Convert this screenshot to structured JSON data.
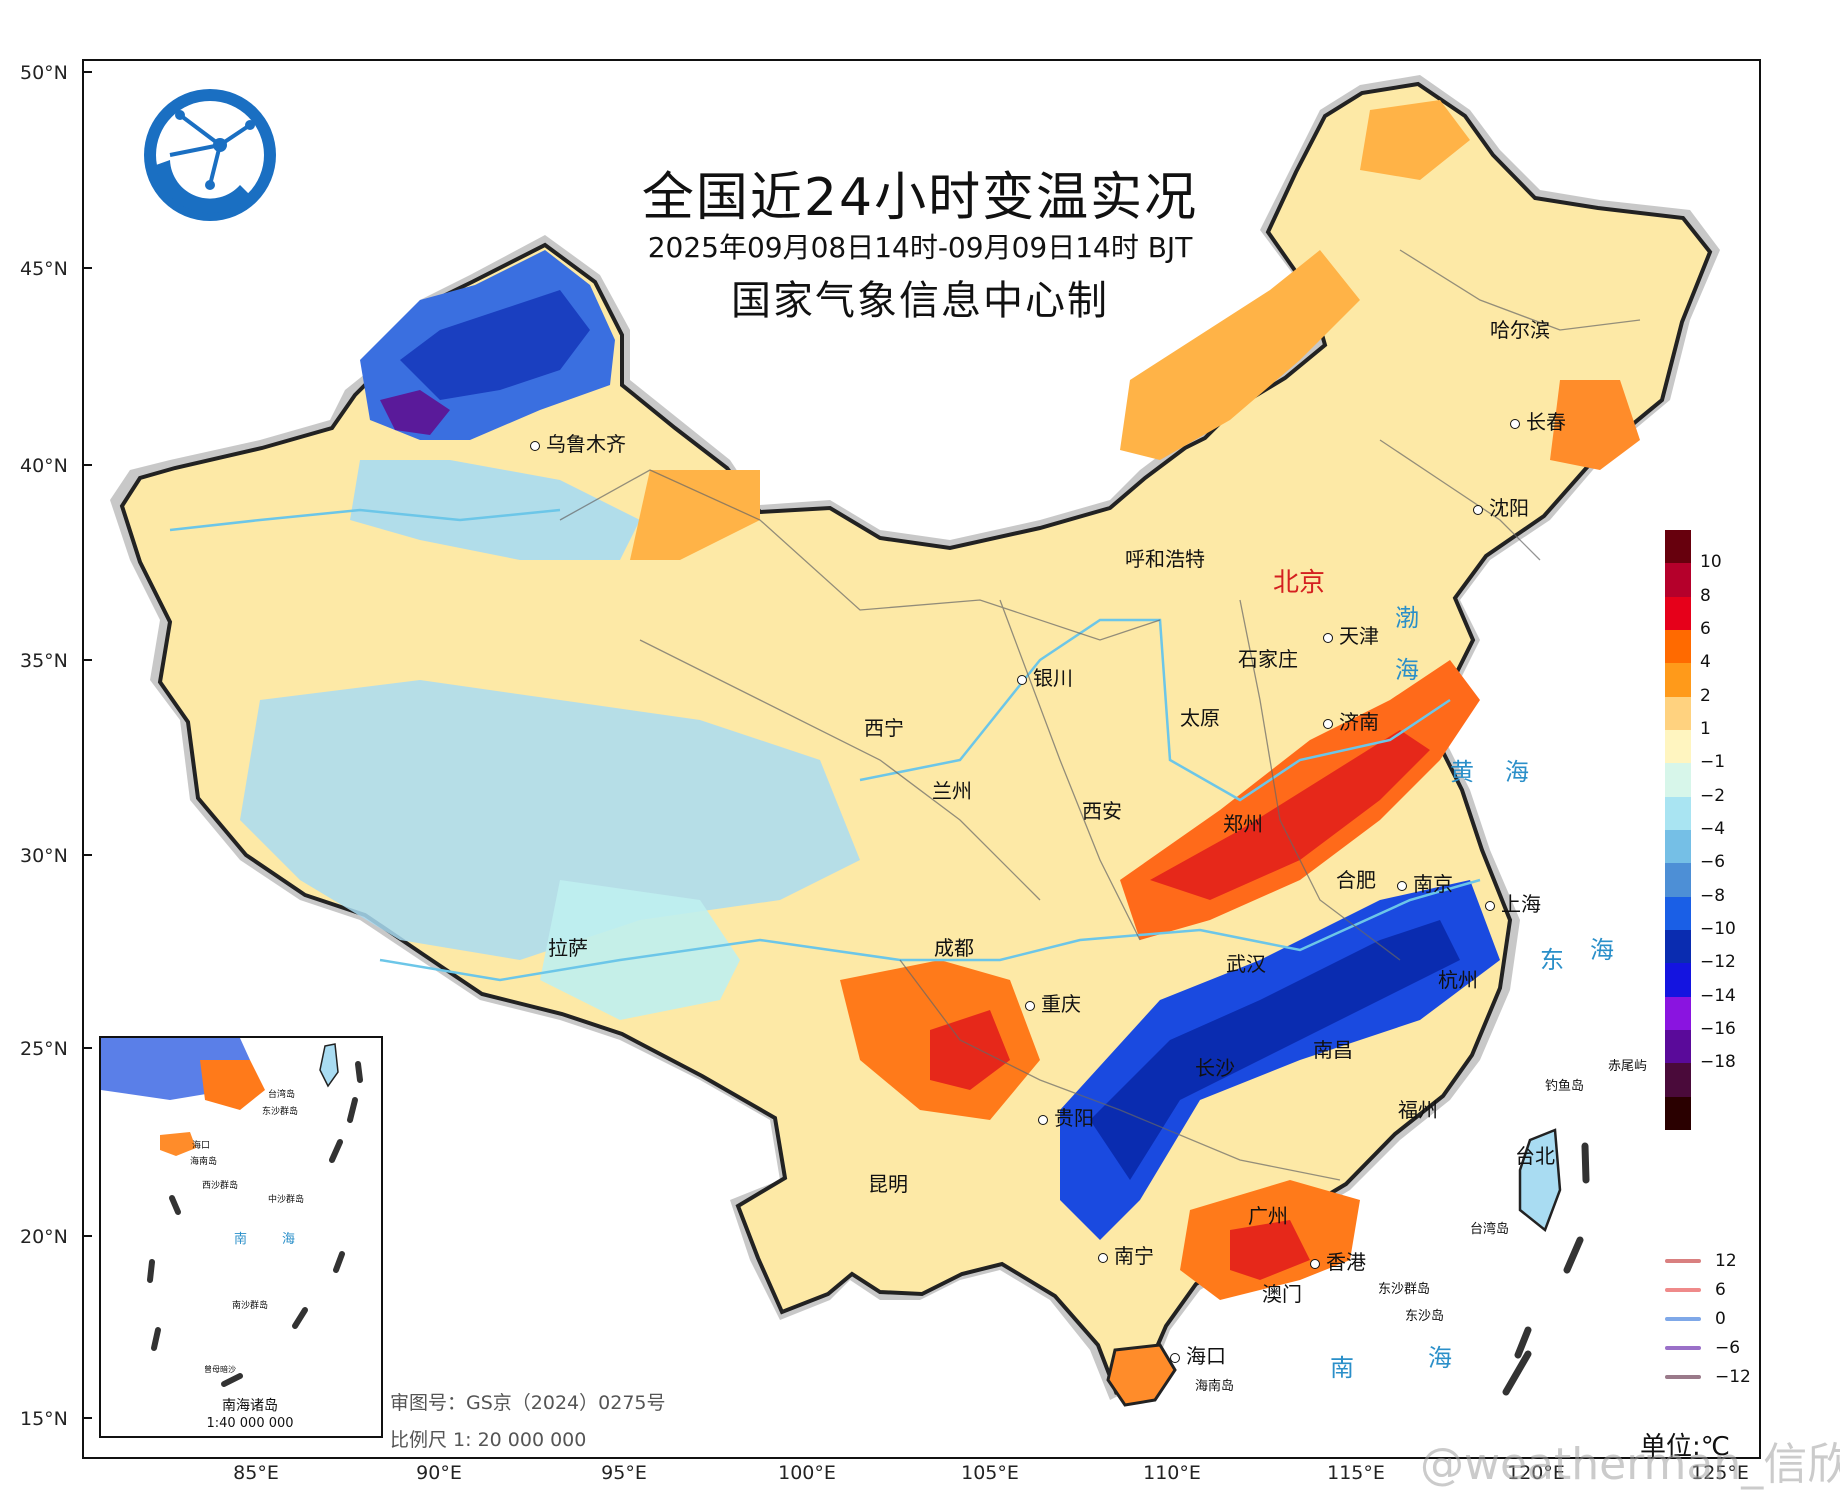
{
  "title": "全国近24小时变温实况",
  "subtitle": "2025年09月08日14时-09月09日14时 BJT",
  "producer": "国家气象信息中心制",
  "unit": "单位:℃",
  "approval_number": "审图号：GS京（2024）0275号",
  "scale": "比例尺 1: 20 000 000",
  "inset": {
    "title": "南海诸岛",
    "scale": "1:40 000 000"
  },
  "watermark": "@weatherman_信欣",
  "latitude_labels": [
    "50°N",
    "45°N",
    "40°N",
    "35°N",
    "30°N",
    "25°N",
    "20°N",
    "15°N"
  ],
  "longitude_labels": [
    "85°E",
    "90°E",
    "95°E",
    "100°E",
    "105°E",
    "110°E",
    "115°E",
    "120°E",
    "125°E"
  ],
  "legend": {
    "colors": [
      "#67000d",
      "#b5002b",
      "#e6001a",
      "#ff6a00",
      "#ff9a1a",
      "#ffd27f",
      "#fff5c0",
      "#d7f6ea",
      "#a9e4f2",
      "#75bfe6",
      "#4d8fd6",
      "#1a5fe6",
      "#0a2cb0",
      "#1414e0",
      "#8a14e0",
      "#5a0a9a",
      "#4a0a3a",
      "#2a0000"
    ],
    "labels": [
      "10",
      "8",
      "6",
      "4",
      "2",
      "1",
      "−1",
      "−2",
      "−4",
      "−6",
      "−8",
      "−10",
      "−12",
      "−14",
      "−16",
      "−18"
    ]
  },
  "contour_lines": [
    {
      "label": "12",
      "color": "#d98080"
    },
    {
      "label": "6",
      "color": "#ef8a8a"
    },
    {
      "label": "0",
      "color": "#7fa8e8"
    },
    {
      "label": "−6",
      "color": "#9a70c8"
    },
    {
      "label": "−12",
      "color": "#9a7a8a"
    }
  ],
  "cities": [
    {
      "name": "乌鲁木齐"
    },
    {
      "name": "呼和浩特"
    },
    {
      "name": "北京"
    },
    {
      "name": "天津"
    },
    {
      "name": "石家庄"
    },
    {
      "name": "银川"
    },
    {
      "name": "太原"
    },
    {
      "name": "济南"
    },
    {
      "name": "西宁"
    },
    {
      "name": "兰州"
    },
    {
      "name": "西安"
    },
    {
      "name": "郑州"
    },
    {
      "name": "合肥"
    },
    {
      "name": "南京"
    },
    {
      "name": "上海"
    },
    {
      "name": "拉萨"
    },
    {
      "name": "成都"
    },
    {
      "name": "武汉"
    },
    {
      "name": "杭州"
    },
    {
      "name": "重庆"
    },
    {
      "name": "南昌"
    },
    {
      "name": "长沙"
    },
    {
      "name": "贵阳"
    },
    {
      "name": "福州"
    },
    {
      "name": "台北"
    },
    {
      "name": "昆明"
    },
    {
      "name": "广州"
    },
    {
      "name": "南宁"
    },
    {
      "name": "香港"
    },
    {
      "name": "澳门"
    },
    {
      "name": "海口"
    },
    {
      "name": "哈尔滨"
    },
    {
      "name": "长春"
    },
    {
      "name": "沈阳"
    }
  ],
  "seas": [
    "渤",
    "海",
    "黄",
    "海",
    "东",
    "海",
    "南",
    "海"
  ],
  "islands": [
    "钓鱼岛",
    "赤尾屿",
    "台湾岛",
    "东沙群岛",
    "东沙岛",
    "海南岛"
  ],
  "inset_labels": [
    "台湾岛",
    "东沙群岛",
    "海口",
    "海南岛",
    "西沙群岛",
    "中沙群岛",
    "南",
    "海",
    "南沙群岛",
    "曾母暗沙"
  ]
}
